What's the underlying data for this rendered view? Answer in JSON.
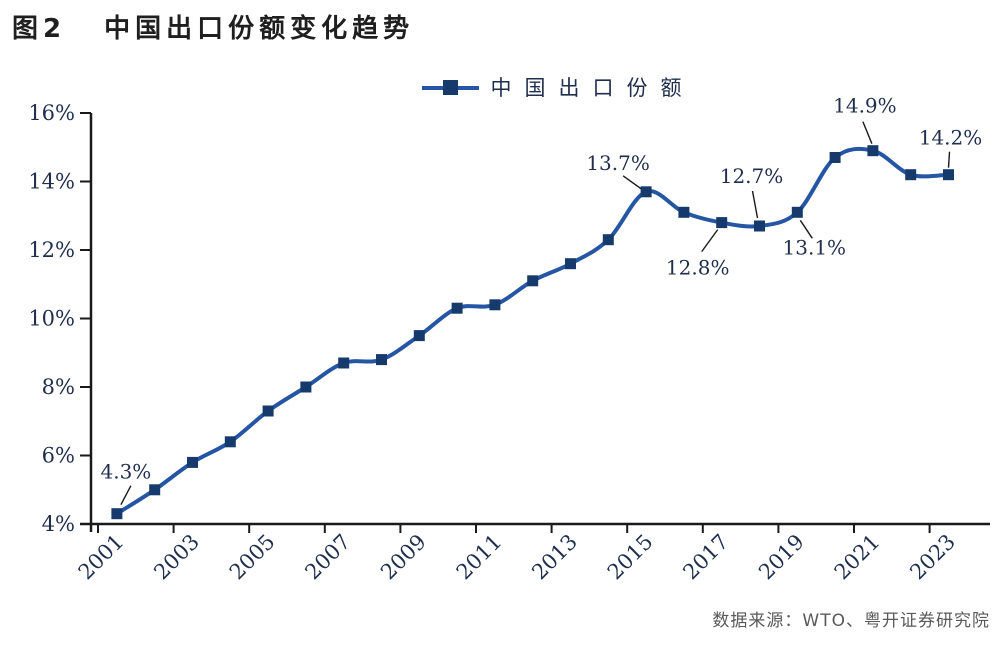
{
  "figure": {
    "label": "图2",
    "title": "中国出口份额变化趋势"
  },
  "legend": {
    "label": "中国出口份额"
  },
  "source": "数据来源：WTO、粤开证券研究院",
  "colors": {
    "series_line": "#2456A3",
    "series_marker": "#173A6D",
    "axis_line": "#1A1A1A",
    "axis_text": "#1F2E4D",
    "annotation_text": "#1F2E4D",
    "leader_line": "#1A1A1A",
    "title_text": "#1F1F1F",
    "source_text": "#595959",
    "background": "#FFFFFF"
  },
  "chart_data": {
    "type": "line",
    "title": "中国出口份额变化趋势",
    "unit": "%",
    "grid": false,
    "smooth": true,
    "legend_position": "top-center",
    "ylim": [
      4,
      16
    ],
    "y_tick_labels": [
      "4%",
      "6%",
      "8%",
      "10%",
      "12%",
      "14%",
      "16%"
    ],
    "x_tick_labels": [
      "2001",
      "2003",
      "2005",
      "2007",
      "2009",
      "2011",
      "2013",
      "2015",
      "2017",
      "2019",
      "2021",
      "2023"
    ],
    "x_label_every": 2,
    "series": [
      {
        "name": "中国出口份额",
        "x": [
          2001,
          2002,
          2003,
          2004,
          2005,
          2006,
          2007,
          2008,
          2009,
          2010,
          2011,
          2012,
          2013,
          2014,
          2015,
          2016,
          2017,
          2018,
          2019,
          2020,
          2021,
          2022,
          2023
        ],
        "values": [
          4.3,
          5.0,
          5.8,
          6.4,
          7.3,
          8.0,
          8.7,
          8.8,
          9.5,
          10.3,
          10.4,
          11.1,
          11.6,
          12.3,
          13.7,
          13.1,
          12.8,
          12.7,
          13.1,
          14.7,
          14.9,
          14.2,
          14.2
        ]
      }
    ],
    "annotations": [
      {
        "year": 2001,
        "text": "4.3%",
        "label_offset": [
          9,
          -42
        ],
        "leader": [
          [
            4,
            -9
          ],
          [
            14,
            -28
          ]
        ]
      },
      {
        "year": 2015,
        "text": "13.7%",
        "label_offset": [
          -28,
          -29
        ],
        "leader": [
          [
            -5,
            -3
          ],
          [
            -23,
            -16
          ]
        ]
      },
      {
        "year": 2017,
        "text": "12.8%",
        "label_offset": [
          -24,
          45
        ],
        "leader": [
          [
            -4,
            7
          ],
          [
            -20,
            29
          ]
        ]
      },
      {
        "year": 2018,
        "text": "12.7%",
        "label_offset": [
          -8,
          -50
        ],
        "leader": [
          [
            -2,
            -8
          ],
          [
            -7,
            -35
          ]
        ]
      },
      {
        "year": 2019,
        "text": "13.1%",
        "label_offset": [
          17,
          35
        ],
        "leader": [
          [
            3,
            8
          ],
          [
            15,
            26
          ]
        ]
      },
      {
        "year": 2021,
        "text": "14.9%",
        "label_offset": [
          -8,
          -45
        ],
        "leader": [
          [
            -1,
            -7
          ],
          [
            -10,
            -29
          ]
        ]
      },
      {
        "year": 2023,
        "text": "14.2%",
        "label_offset": [
          2,
          -37
        ],
        "leader": [
          [
            0,
            -7
          ],
          [
            1,
            -23
          ]
        ]
      }
    ]
  }
}
